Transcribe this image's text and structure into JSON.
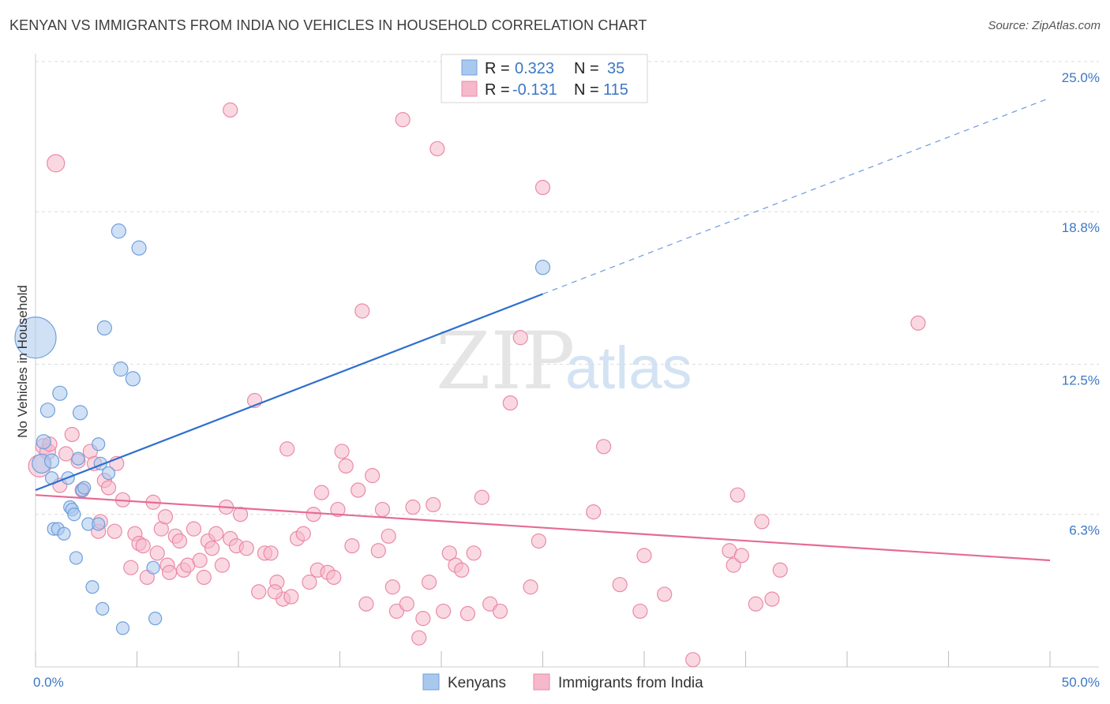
{
  "title": "KENYAN VS IMMIGRANTS FROM INDIA NO VEHICLES IN HOUSEHOLD CORRELATION CHART",
  "source": "Source: ZipAtlas.com",
  "watermark": {
    "zip": "ZIP",
    "atlas": "atlas"
  },
  "legend_top": [
    {
      "r_label": "R =",
      "r_value": "0.323",
      "n_label": "N =",
      "n_value": "35",
      "color": "#a9c8ee"
    },
    {
      "r_label": "R =",
      "r_value": "-0.131",
      "n_label": "N =",
      "n_value": "115",
      "color": "#f6b8cb"
    }
  ],
  "legend_bottom": [
    {
      "label": "Kenyans",
      "color": "#a9c8ee"
    },
    {
      "label": "Immigrants from India",
      "color": "#f6b8cb"
    }
  ],
  "chart_data": {
    "type": "scatter",
    "ylabel": "No Vehicles in Household",
    "xlim": [
      0,
      50
    ],
    "ylim": [
      0,
      25
    ],
    "x_tick_labels": [
      "0.0%",
      "50.0%"
    ],
    "y_ticks": [
      6.3,
      12.5,
      18.8,
      25.0
    ],
    "y_tick_labels": [
      "6.3%",
      "12.5%",
      "18.8%",
      "25.0%"
    ],
    "grid": true,
    "series": [
      {
        "name": "Kenyans",
        "color": "#6fa0dc",
        "fill": "#a9c8ee",
        "trend": {
          "x0": 0,
          "y0": 7.3,
          "x1": 25,
          "y1": 15.4,
          "dash_to_x": 50,
          "dash_to_y": 23.5,
          "color": "#2e6fcf"
        },
        "points": [
          [
            0.0,
            13.6,
            26
          ],
          [
            0.3,
            8.4,
            12
          ],
          [
            0.4,
            9.3,
            9
          ],
          [
            0.6,
            10.6,
            9
          ],
          [
            0.8,
            8.5,
            9
          ],
          [
            0.8,
            7.8,
            8
          ],
          [
            0.9,
            5.7,
            8
          ],
          [
            1.1,
            5.7,
            8
          ],
          [
            1.2,
            11.3,
            9
          ],
          [
            1.4,
            5.5,
            8
          ],
          [
            1.6,
            7.8,
            8
          ],
          [
            1.7,
            6.6,
            8
          ],
          [
            1.8,
            6.5,
            8
          ],
          [
            1.9,
            6.3,
            8
          ],
          [
            2.1,
            8.6,
            8
          ],
          [
            2.2,
            10.5,
            9
          ],
          [
            2.3,
            7.3,
            8
          ],
          [
            2.6,
            5.9,
            8
          ],
          [
            2.8,
            3.3,
            8
          ],
          [
            3.1,
            9.2,
            8
          ],
          [
            3.1,
            5.9,
            8
          ],
          [
            3.2,
            8.4,
            8
          ],
          [
            3.3,
            2.4,
            8
          ],
          [
            3.4,
            14.0,
            9
          ],
          [
            3.6,
            8.0,
            8
          ],
          [
            4.1,
            18.0,
            9
          ],
          [
            4.2,
            12.3,
            9
          ],
          [
            4.3,
            1.6,
            8
          ],
          [
            4.8,
            11.9,
            9
          ],
          [
            5.1,
            17.3,
            9
          ],
          [
            5.8,
            4.1,
            8
          ],
          [
            5.9,
            2.0,
            8
          ],
          [
            2.0,
            4.5,
            8
          ],
          [
            2.4,
            7.4,
            8
          ],
          [
            25.0,
            16.5,
            9
          ]
        ]
      },
      {
        "name": "Immigrants from India",
        "color": "#ea8aa8",
        "fill": "#f6b8cb",
        "trend": {
          "x0": 0,
          "y0": 7.1,
          "x1": 50,
          "y1": 4.4,
          "color": "#e56b96"
        },
        "points": [
          [
            0.2,
            8.3,
            14
          ],
          [
            0.4,
            9.1,
            10
          ],
          [
            0.6,
            8.9,
            10
          ],
          [
            0.7,
            9.2,
            9
          ],
          [
            1.0,
            20.8,
            11
          ],
          [
            1.2,
            7.5,
            9
          ],
          [
            1.5,
            8.8,
            9
          ],
          [
            1.8,
            9.6,
            9
          ],
          [
            2.1,
            8.5,
            9
          ],
          [
            2.3,
            7.3,
            9
          ],
          [
            2.7,
            8.9,
            9
          ],
          [
            2.9,
            8.4,
            9
          ],
          [
            3.1,
            5.6,
            9
          ],
          [
            3.2,
            6.0,
            9
          ],
          [
            3.4,
            7.7,
            9
          ],
          [
            3.6,
            7.4,
            9
          ],
          [
            3.9,
            5.6,
            9
          ],
          [
            4.0,
            8.4,
            9
          ],
          [
            4.3,
            6.9,
            9
          ],
          [
            4.7,
            4.1,
            9
          ],
          [
            4.9,
            5.5,
            9
          ],
          [
            5.1,
            5.1,
            9
          ],
          [
            5.3,
            5.0,
            9
          ],
          [
            5.5,
            3.7,
            9
          ],
          [
            5.8,
            6.8,
            9
          ],
          [
            6.0,
            4.7,
            9
          ],
          [
            6.2,
            5.7,
            9
          ],
          [
            6.4,
            6.2,
            9
          ],
          [
            6.5,
            4.2,
            9
          ],
          [
            6.6,
            3.9,
            9
          ],
          [
            6.9,
            5.4,
            9
          ],
          [
            7.1,
            5.2,
            9
          ],
          [
            7.3,
            4.0,
            9
          ],
          [
            7.5,
            4.2,
            9
          ],
          [
            7.8,
            5.7,
            9
          ],
          [
            8.1,
            4.4,
            9
          ],
          [
            8.3,
            3.7,
            9
          ],
          [
            8.5,
            5.2,
            9
          ],
          [
            8.7,
            4.9,
            9
          ],
          [
            8.9,
            5.5,
            9
          ],
          [
            9.2,
            4.2,
            9
          ],
          [
            9.4,
            6.6,
            9
          ],
          [
            9.6,
            5.3,
            9
          ],
          [
            9.9,
            5.0,
            9
          ],
          [
            10.1,
            6.3,
            9
          ],
          [
            10.4,
            4.9,
            9
          ],
          [
            10.8,
            11.0,
            9
          ],
          [
            11.0,
            3.1,
            9
          ],
          [
            11.3,
            4.7,
            9
          ],
          [
            11.6,
            4.7,
            9
          ],
          [
            11.9,
            3.5,
            9
          ],
          [
            12.2,
            2.8,
            9
          ],
          [
            12.4,
            9.0,
            9
          ],
          [
            12.6,
            2.9,
            9
          ],
          [
            12.9,
            5.3,
            9
          ],
          [
            13.2,
            5.5,
            9
          ],
          [
            13.5,
            3.5,
            9
          ],
          [
            13.7,
            6.3,
            9
          ],
          [
            13.9,
            4.0,
            9
          ],
          [
            14.1,
            7.2,
            9
          ],
          [
            14.4,
            3.9,
            9
          ],
          [
            14.7,
            3.7,
            9
          ],
          [
            14.9,
            6.5,
            9
          ],
          [
            15.1,
            8.9,
            9
          ],
          [
            15.3,
            8.3,
            9
          ],
          [
            15.6,
            5.0,
            9
          ],
          [
            15.9,
            7.3,
            9
          ],
          [
            16.1,
            14.7,
            9
          ],
          [
            16.3,
            2.6,
            9
          ],
          [
            16.6,
            7.9,
            9
          ],
          [
            16.9,
            4.8,
            9
          ],
          [
            17.1,
            6.5,
            9
          ],
          [
            17.4,
            5.4,
            9
          ],
          [
            17.6,
            3.3,
            9
          ],
          [
            17.8,
            2.3,
            9
          ],
          [
            18.1,
            22.6,
            9
          ],
          [
            18.3,
            2.6,
            9
          ],
          [
            18.6,
            6.6,
            9
          ],
          [
            18.9,
            1.2,
            9
          ],
          [
            19.1,
            2.0,
            9
          ],
          [
            19.4,
            3.5,
            9
          ],
          [
            19.6,
            6.7,
            9
          ],
          [
            19.8,
            21.4,
            9
          ],
          [
            20.1,
            2.3,
            9
          ],
          [
            20.4,
            4.7,
            9
          ],
          [
            20.7,
            4.2,
            9
          ],
          [
            21.0,
            4.0,
            9
          ],
          [
            21.3,
            2.2,
            9
          ],
          [
            21.6,
            4.7,
            9
          ],
          [
            22.0,
            7.0,
            9
          ],
          [
            22.4,
            2.6,
            9
          ],
          [
            22.9,
            2.3,
            9
          ],
          [
            23.4,
            10.9,
            9
          ],
          [
            23.9,
            13.6,
            9
          ],
          [
            24.4,
            3.3,
            9
          ],
          [
            24.8,
            5.2,
            9
          ],
          [
            25.0,
            19.8,
            9
          ],
          [
            9.6,
            23.0,
            9
          ],
          [
            27.5,
            6.4,
            9
          ],
          [
            28.0,
            9.1,
            9
          ],
          [
            28.8,
            3.4,
            9
          ],
          [
            29.8,
            2.3,
            9
          ],
          [
            30.0,
            4.6,
            9
          ],
          [
            31.0,
            3.0,
            9
          ],
          [
            34.2,
            4.8,
            9
          ],
          [
            34.4,
            4.2,
            9
          ],
          [
            34.6,
            7.1,
            9
          ],
          [
            34.8,
            4.6,
            9
          ],
          [
            35.5,
            2.6,
            9
          ],
          [
            35.8,
            6.0,
            9
          ],
          [
            36.3,
            2.8,
            9
          ],
          [
            36.7,
            4.0,
            9
          ],
          [
            43.5,
            14.2,
            9
          ],
          [
            32.4,
            0.3,
            9
          ],
          [
            11.8,
            3.1,
            9
          ]
        ]
      }
    ]
  }
}
